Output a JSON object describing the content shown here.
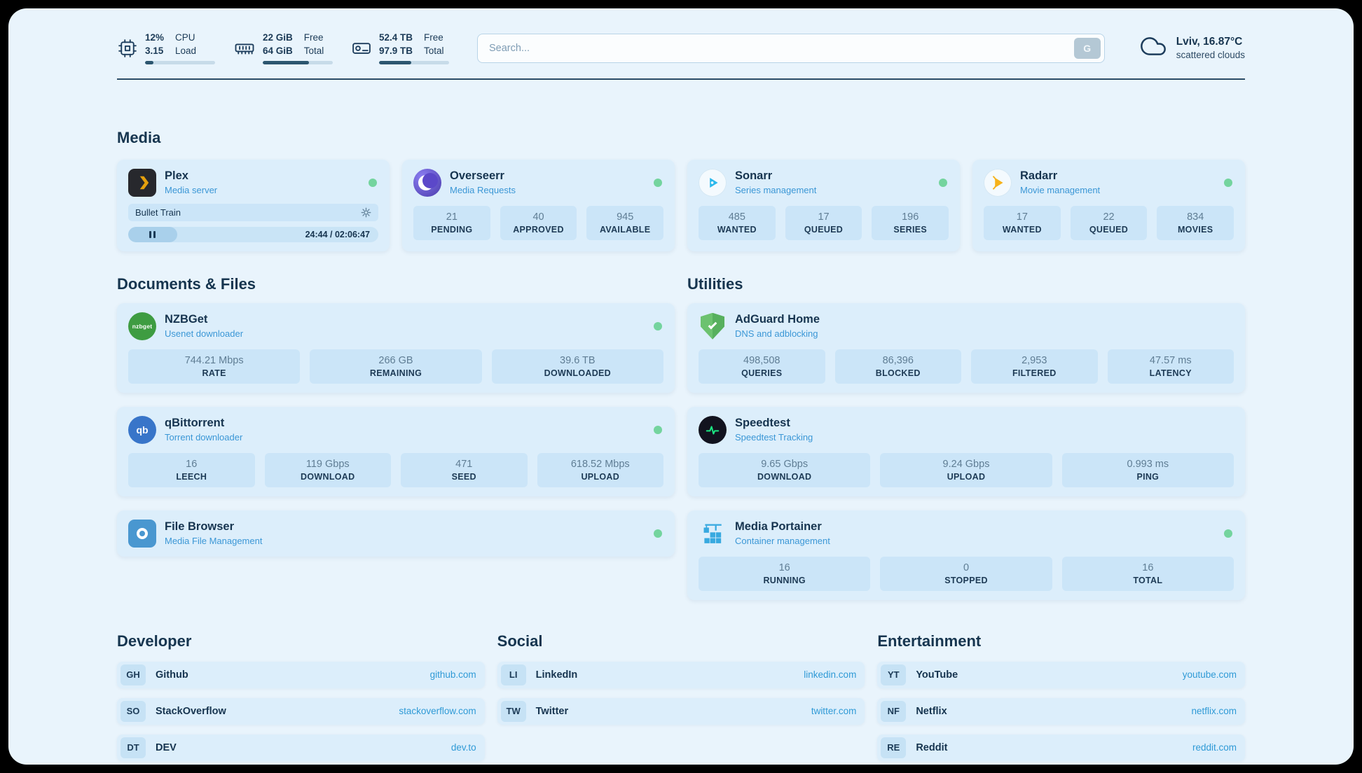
{
  "header": {
    "cpu": {
      "val1": "12%",
      "val2": "3.15",
      "lab1": "CPU",
      "lab2": "Load",
      "progress": 12
    },
    "ram": {
      "val1": "22 GiB",
      "val2": "64 GiB",
      "lab1": "Free",
      "lab2": "Total",
      "progress": 66
    },
    "disk": {
      "val1": "52.4 TB",
      "val2": "97.9 TB",
      "lab1": "Free",
      "lab2": "Total",
      "progress": 46
    },
    "search": {
      "placeholder": "Search...",
      "button_label": "G"
    },
    "weather": {
      "location": "Lviv, 16.87°C",
      "condition": "scattered clouds"
    }
  },
  "sections": {
    "media": {
      "title": "Media",
      "apps": [
        {
          "name": "Plex",
          "subtitle": "Media server",
          "online": true,
          "player": {
            "title": "Bullet Train",
            "time": "24:44 / 02:06:47",
            "progress_pct": 19.5
          }
        },
        {
          "name": "Overseerr",
          "subtitle": "Media Requests",
          "online": true,
          "stats": [
            {
              "value": "21",
              "label": "PENDING"
            },
            {
              "value": "40",
              "label": "APPROVED"
            },
            {
              "value": "945",
              "label": "AVAILABLE"
            }
          ]
        },
        {
          "name": "Sonarr",
          "subtitle": "Series management",
          "online": true,
          "stats": [
            {
              "value": "485",
              "label": "WANTED"
            },
            {
              "value": "17",
              "label": "QUEUED"
            },
            {
              "value": "196",
              "label": "SERIES"
            }
          ]
        },
        {
          "name": "Radarr",
          "subtitle": "Movie management",
          "online": true,
          "stats": [
            {
              "value": "17",
              "label": "WANTED"
            },
            {
              "value": "22",
              "label": "QUEUED"
            },
            {
              "value": "834",
              "label": "MOVIES"
            }
          ]
        }
      ]
    },
    "documents": {
      "title": "Documents & Files",
      "apps": [
        {
          "name": "NZBGet",
          "subtitle": "Usenet downloader",
          "online": true,
          "icon_text": "nzbget",
          "stats": [
            {
              "value": "744.21 Mbps",
              "label": "RATE"
            },
            {
              "value": "266 GB",
              "label": "REMAINING"
            },
            {
              "value": "39.6 TB",
              "label": "DOWNLOADED"
            }
          ]
        },
        {
          "name": "qBittorrent",
          "subtitle": "Torrent downloader",
          "online": true,
          "icon_text": "qb",
          "stats": [
            {
              "value": "16",
              "label": "LEECH"
            },
            {
              "value": "119 Gbps",
              "label": "DOWNLOAD"
            },
            {
              "value": "471",
              "label": "SEED"
            },
            {
              "value": "618.52 Mbps",
              "label": "UPLOAD"
            }
          ]
        },
        {
          "name": "File Browser",
          "subtitle": "Media File Management",
          "online": true,
          "stats": []
        }
      ]
    },
    "utilities": {
      "title": "Utilities",
      "apps": [
        {
          "name": "AdGuard Home",
          "subtitle": "DNS and adblocking",
          "online": false,
          "stats": [
            {
              "value": "498,508",
              "label": "QUERIES"
            },
            {
              "value": "86,396",
              "label": "BLOCKED"
            },
            {
              "value": "2,953",
              "label": "FILTERED"
            },
            {
              "value": "47.57 ms",
              "label": "LATENCY"
            }
          ]
        },
        {
          "name": "Speedtest",
          "subtitle": "Speedtest Tracking",
          "online": false,
          "stats": [
            {
              "value": "9.65 Gbps",
              "label": "DOWNLOAD"
            },
            {
              "value": "9.24 Gbps",
              "label": "UPLOAD"
            },
            {
              "value": "0.993 ms",
              "label": "PING"
            }
          ]
        },
        {
          "name": "Media Portainer",
          "subtitle": "Container management",
          "online": true,
          "stats": [
            {
              "value": "16",
              "label": "RUNNING"
            },
            {
              "value": "0",
              "label": "STOPPED"
            },
            {
              "value": "16",
              "label": "TOTAL"
            }
          ]
        }
      ]
    }
  },
  "bookmarks": [
    {
      "title": "Developer",
      "links": [
        {
          "abbr": "GH",
          "name": "Github",
          "url": "github.com"
        },
        {
          "abbr": "SO",
          "name": "StackOverflow",
          "url": "stackoverflow.com"
        },
        {
          "abbr": "DT",
          "name": "DEV",
          "url": "dev.to"
        }
      ]
    },
    {
      "title": "Social",
      "links": [
        {
          "abbr": "LI",
          "name": "LinkedIn",
          "url": "linkedin.com"
        },
        {
          "abbr": "TW",
          "name": "Twitter",
          "url": "twitter.com"
        }
      ]
    },
    {
      "title": "Entertainment",
      "links": [
        {
          "abbr": "YT",
          "name": "YouTube",
          "url": "youtube.com"
        },
        {
          "abbr": "NF",
          "name": "Netflix",
          "url": "netflix.com"
        },
        {
          "abbr": "RE",
          "name": "Reddit",
          "url": "reddit.com"
        }
      ]
    }
  ],
  "colors": {
    "background": "#e9f4fc",
    "card": "#dceefb",
    "tile": "#cbe5f8",
    "accent_blue": "#2f9ad6",
    "status_online": "#74d49e",
    "text_dark": "#16344f"
  }
}
